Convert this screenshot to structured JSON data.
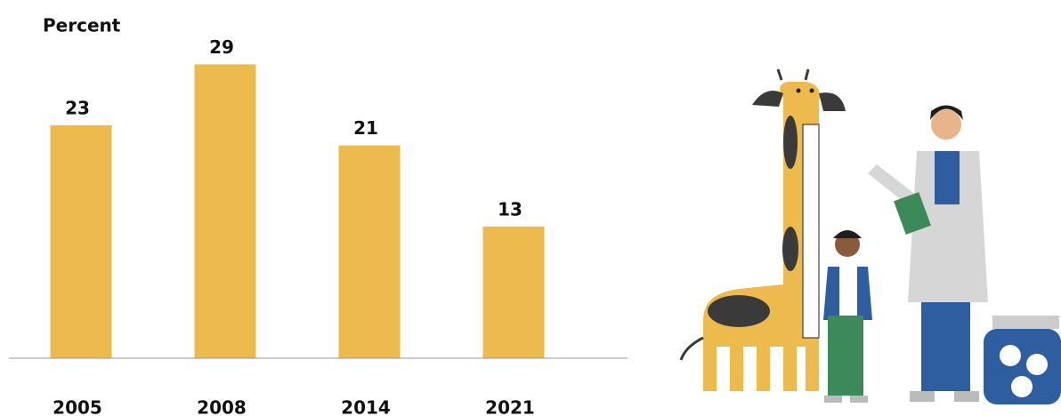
{
  "chart_data": {
    "type": "bar",
    "y_label": "Percent",
    "categories": [
      "2005",
      "2008",
      "2014",
      "2021"
    ],
    "values": [
      23,
      29,
      21,
      13
    ],
    "color": "#edba4e",
    "ylim": [
      0,
      30
    ]
  }
}
